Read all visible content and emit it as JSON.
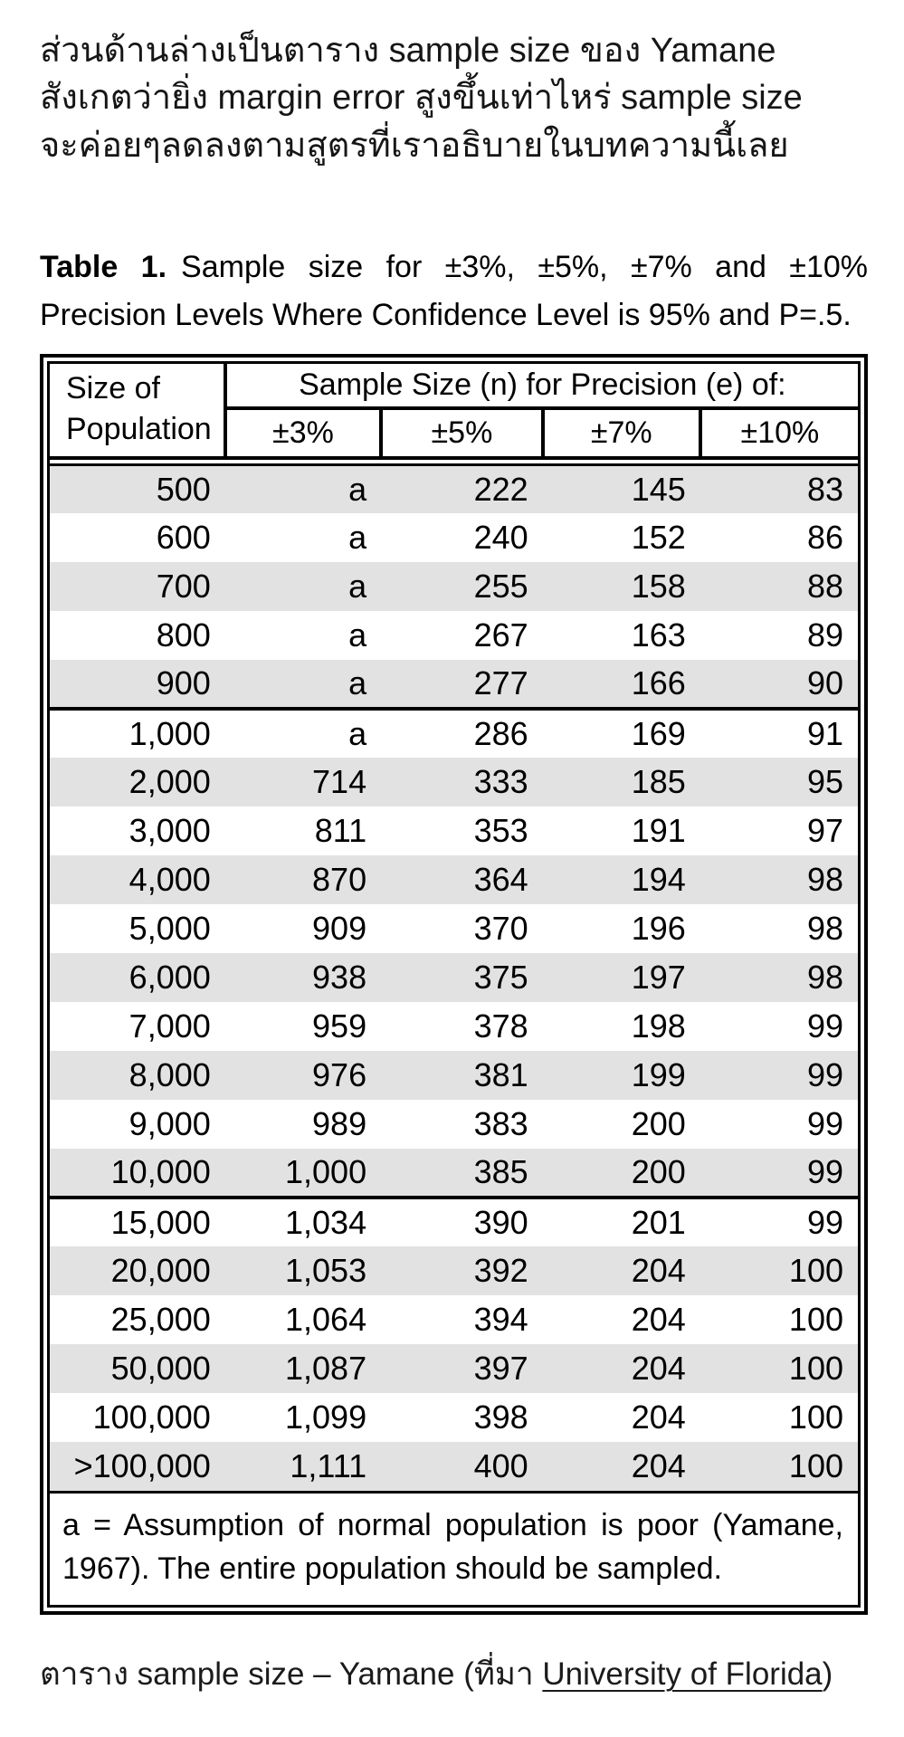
{
  "colors": {
    "background": "#ffffff",
    "text": "#121212",
    "stripe": "#e2e2e2",
    "border": "#000000"
  },
  "intro": {
    "lines": [
      "ส่วนด้านล่างเป็นตาราง sample size ของ Yamane",
      "สังเกตว่ายิ่ง margin error สูงขึ้นเท่าไหร่ sample size",
      "จะค่อยๆลดลงตามสูตรที่เราอธิบายในบทความนี้เลย"
    ]
  },
  "table": {
    "title": {
      "label": "Table 1.",
      "text": "Sample size for ±3%, ±5%, ±7% and ±10% Precision Levels Where Confidence Level is 95% and P=.5."
    },
    "header": {
      "row_label_line1": "Size of",
      "row_label_line2": "Population",
      "group_label": "Sample Size (n) for Precision (e) of:",
      "columns": [
        "±3%",
        "±5%",
        "±7%",
        "±10%"
      ]
    },
    "groups": [
      {
        "rows": [
          [
            "500",
            "a",
            "222",
            "145",
            "83"
          ],
          [
            "600",
            "a",
            "240",
            "152",
            "86"
          ],
          [
            "700",
            "a",
            "255",
            "158",
            "88"
          ],
          [
            "800",
            "a",
            "267",
            "163",
            "89"
          ],
          [
            "900",
            "a",
            "277",
            "166",
            "90"
          ]
        ]
      },
      {
        "rows": [
          [
            "1,000",
            "a",
            "286",
            "169",
            "91"
          ],
          [
            "2,000",
            "714",
            "333",
            "185",
            "95"
          ],
          [
            "3,000",
            "811",
            "353",
            "191",
            "97"
          ],
          [
            "4,000",
            "870",
            "364",
            "194",
            "98"
          ],
          [
            "5,000",
            "909",
            "370",
            "196",
            "98"
          ],
          [
            "6,000",
            "938",
            "375",
            "197",
            "98"
          ],
          [
            "7,000",
            "959",
            "378",
            "198",
            "99"
          ],
          [
            "8,000",
            "976",
            "381",
            "199",
            "99"
          ],
          [
            "9,000",
            "989",
            "383",
            "200",
            "99"
          ],
          [
            "10,000",
            "1,000",
            "385",
            "200",
            "99"
          ]
        ]
      },
      {
        "rows": [
          [
            "15,000",
            "1,034",
            "390",
            "201",
            "99"
          ],
          [
            "20,000",
            "1,053",
            "392",
            "204",
            "100"
          ],
          [
            "25,000",
            "1,064",
            "394",
            "204",
            "100"
          ],
          [
            "50,000",
            "1,087",
            "397",
            "204",
            "100"
          ],
          [
            "100,000",
            "1,099",
            "398",
            "204",
            "100"
          ],
          [
            ">100,000",
            "1,111",
            "400",
            "204",
            "100"
          ]
        ]
      }
    ],
    "footnote": "a = Assumption of normal population is poor (Yamane, 1967).  The entire population should be sampled."
  },
  "caption": {
    "prefix": "ตาราง sample size – Yamane (ที่มา ",
    "link_text": "University of Florida",
    "suffix": ")"
  }
}
